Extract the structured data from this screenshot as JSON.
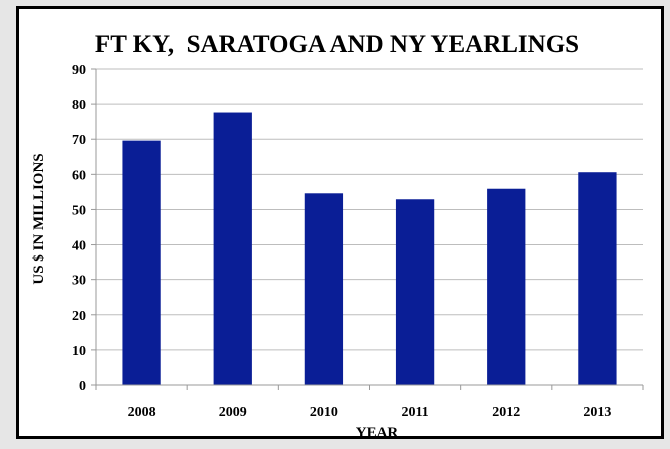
{
  "chart_data": {
    "type": "bar",
    "title": "FT KY,  SARATOGA AND NY YEARLINGS",
    "xlabel": "YEAR",
    "ylabel": "US $ IN MILLIONS",
    "categories": [
      "2008",
      "2009",
      "2010",
      "2011",
      "2012",
      "2013"
    ],
    "values": [
      69.6,
      77.6,
      54.6,
      52.9,
      55.9,
      60.6
    ],
    "ylim": [
      0,
      90
    ],
    "yticks": [
      0,
      10,
      20,
      30,
      40,
      50,
      60,
      70,
      80,
      90
    ],
    "grid": true,
    "legend": "none",
    "colors": {
      "bar": "#0a1e96",
      "grid": "#bdbdbd"
    }
  }
}
